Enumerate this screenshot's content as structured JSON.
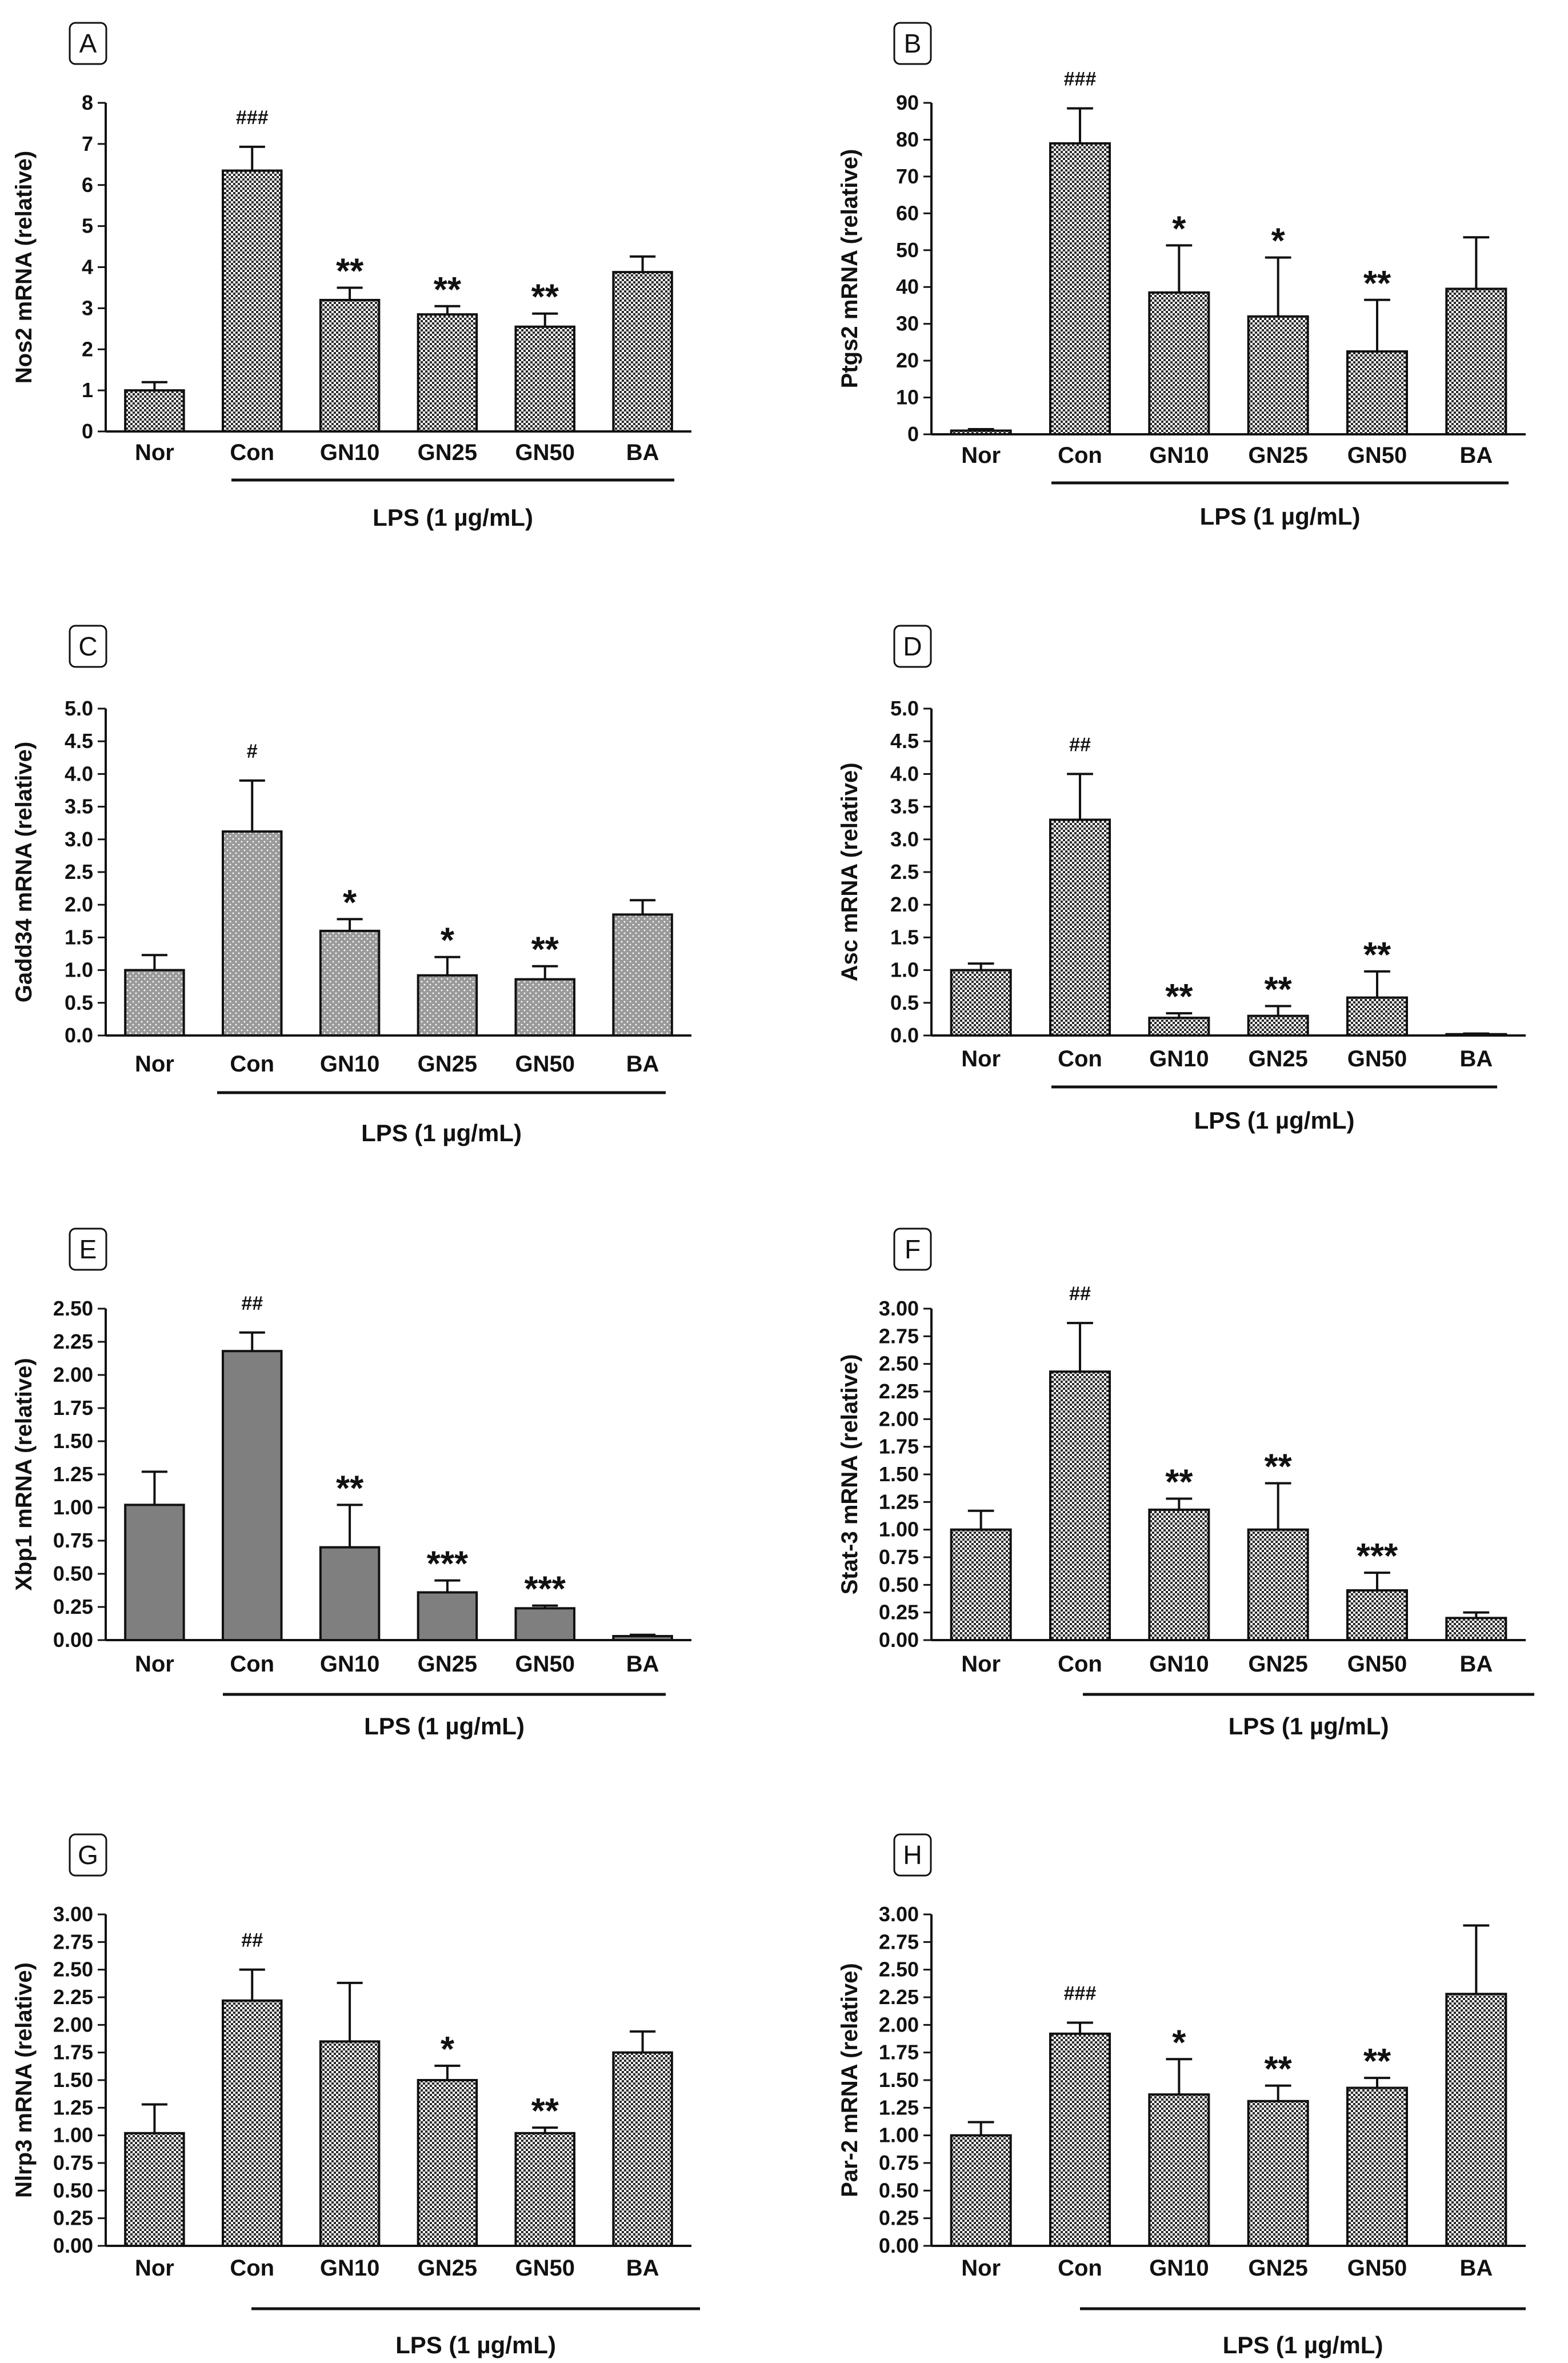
{
  "chart_data": [
    {
      "panel": "A",
      "type": "bar",
      "ylabel": "Nos2 mRNA (relative)",
      "xlabel": "LPS (1 µg/mL)",
      "categories": [
        "Nor",
        "Con",
        "GN10",
        "GN25",
        "GN50",
        "BA"
      ],
      "values": [
        1.0,
        6.35,
        3.2,
        2.85,
        2.55,
        3.88
      ],
      "errors": [
        0.2,
        0.58,
        0.3,
        0.2,
        0.32,
        0.38
      ],
      "significance": [
        "",
        "###",
        "**",
        "**",
        "**",
        ""
      ],
      "ylim": [
        0,
        8
      ],
      "yticks": [
        "0",
        "1",
        "2",
        "3",
        "4",
        "5",
        "6",
        "7",
        "8"
      ],
      "fill": "checker"
    },
    {
      "panel": "B",
      "type": "bar",
      "ylabel": "Ptgs2 mRNA (relative)",
      "xlabel": "LPS (1 µg/mL)",
      "categories": [
        "Nor",
        "Con",
        "GN10",
        "GN25",
        "GN50",
        "BA"
      ],
      "values": [
        1.0,
        79.0,
        38.5,
        32.0,
        22.5,
        39.5
      ],
      "errors": [
        0.4,
        9.5,
        12.8,
        16.0,
        14.0,
        14.0
      ],
      "significance": [
        "",
        "###",
        "*",
        "*",
        "**",
        ""
      ],
      "ylim": [
        0,
        90
      ],
      "yticks": [
        "0",
        "10",
        "20",
        "30",
        "40",
        "50",
        "60",
        "70",
        "80",
        "90"
      ],
      "fill": "checker"
    },
    {
      "panel": "C",
      "type": "bar",
      "ylabel": "Gadd34 mRNA (relative)",
      "xlabel": "LPS (1 µg/mL)",
      "categories": [
        "Nor",
        "Con",
        "GN10",
        "GN25",
        "GN50",
        "BA"
      ],
      "values": [
        1.0,
        3.12,
        1.6,
        0.92,
        0.86,
        1.85
      ],
      "errors": [
        0.23,
        0.78,
        0.18,
        0.28,
        0.2,
        0.22
      ],
      "significance": [
        "",
        "#",
        "*",
        "*",
        "**",
        ""
      ],
      "ylim": [
        0,
        5
      ],
      "yticks": [
        "0.0",
        "0.5",
        "1.0",
        "1.5",
        "2.0",
        "2.5",
        "3.0",
        "3.5",
        "4.0",
        "4.5",
        "5.0"
      ],
      "fill": "dots"
    },
    {
      "panel": "D",
      "type": "bar",
      "ylabel": "Asc mRNA (relative)",
      "xlabel": "LPS (1 µg/mL)",
      "categories": [
        "Nor",
        "Con",
        "GN10",
        "GN25",
        "GN50",
        "BA"
      ],
      "values": [
        1.0,
        3.3,
        0.27,
        0.3,
        0.58,
        0.02
      ],
      "errors": [
        0.1,
        0.7,
        0.07,
        0.15,
        0.4,
        0.01
      ],
      "significance": [
        "",
        "##",
        "**",
        "**",
        "**",
        ""
      ],
      "ylim": [
        0,
        5
      ],
      "yticks": [
        "0.0",
        "0.5",
        "1.0",
        "1.5",
        "2.0",
        "2.5",
        "3.0",
        "3.5",
        "4.0",
        "4.5",
        "5.0"
      ],
      "fill": "checker"
    },
    {
      "panel": "E",
      "type": "bar",
      "ylabel": "Xbp1 mRNA (relative)",
      "xlabel": "LPS (1 µg/mL)",
      "categories": [
        "Nor",
        "Con",
        "GN10",
        "GN25",
        "GN50",
        "BA"
      ],
      "values": [
        1.02,
        2.18,
        0.7,
        0.36,
        0.24,
        0.03
      ],
      "errors": [
        0.25,
        0.14,
        0.32,
        0.09,
        0.02,
        0.01
      ],
      "significance": [
        "",
        "##",
        "**",
        "***",
        "***",
        ""
      ],
      "ylim": [
        0,
        2.5
      ],
      "yticks": [
        "0.00",
        "0.25",
        "0.50",
        "0.75",
        "1.00",
        "1.25",
        "1.50",
        "1.75",
        "2.00",
        "2.25",
        "2.50"
      ],
      "fill": "solid"
    },
    {
      "panel": "F",
      "type": "bar",
      "ylabel": "Stat-3 mRNA (relative)",
      "xlabel": "LPS (1 µg/mL)",
      "categories": [
        "Nor",
        "Con",
        "GN10",
        "GN25",
        "GN50",
        "BA"
      ],
      "values": [
        1.0,
        2.43,
        1.18,
        1.0,
        0.45,
        0.2
      ],
      "errors": [
        0.17,
        0.44,
        0.1,
        0.42,
        0.16,
        0.05
      ],
      "significance": [
        "",
        "##",
        "**",
        "**",
        "***",
        ""
      ],
      "ylim": [
        0,
        3
      ],
      "yticks": [
        "0.00",
        "0.25",
        "0.50",
        "0.75",
        "1.00",
        "1.25",
        "1.50",
        "1.75",
        "2.00",
        "2.25",
        "2.50",
        "2.75",
        "3.00"
      ],
      "fill": "checker"
    },
    {
      "panel": "G",
      "type": "bar",
      "ylabel": "Nlrp3 mRNA (relative)",
      "xlabel": "LPS (1 µg/mL)",
      "categories": [
        "Nor",
        "Con",
        "GN10",
        "GN25",
        "GN50",
        "BA"
      ],
      "values": [
        1.02,
        2.22,
        1.85,
        1.5,
        1.02,
        1.75
      ],
      "errors": [
        0.26,
        0.28,
        0.53,
        0.13,
        0.05,
        0.19
      ],
      "significance": [
        "",
        "##",
        "",
        "*",
        "**",
        ""
      ],
      "ylim": [
        0,
        3
      ],
      "yticks": [
        "0.00",
        "0.25",
        "0.50",
        "0.75",
        "1.00",
        "1.25",
        "1.50",
        "1.75",
        "2.00",
        "2.25",
        "2.50",
        "2.75",
        "3.00"
      ],
      "fill": "checker"
    },
    {
      "panel": "H",
      "type": "bar",
      "ylabel": "Par-2 mRNA (relative)",
      "xlabel": "LPS (1 µg/mL)",
      "categories": [
        "Nor",
        "Con",
        "GN10",
        "GN25",
        "GN50",
        "BA"
      ],
      "values": [
        1.0,
        1.92,
        1.37,
        1.31,
        1.43,
        2.28
      ],
      "errors": [
        0.12,
        0.1,
        0.32,
        0.14,
        0.09,
        0.62
      ],
      "significance": [
        "",
        "###",
        "*",
        "**",
        "**",
        ""
      ],
      "ylim": [
        0,
        3
      ],
      "yticks": [
        "0.00",
        "0.25",
        "0.50",
        "0.75",
        "1.00",
        "1.25",
        "1.50",
        "1.75",
        "2.00",
        "2.25",
        "2.50",
        "2.75",
        "3.00"
      ],
      "fill": "checker"
    }
  ]
}
